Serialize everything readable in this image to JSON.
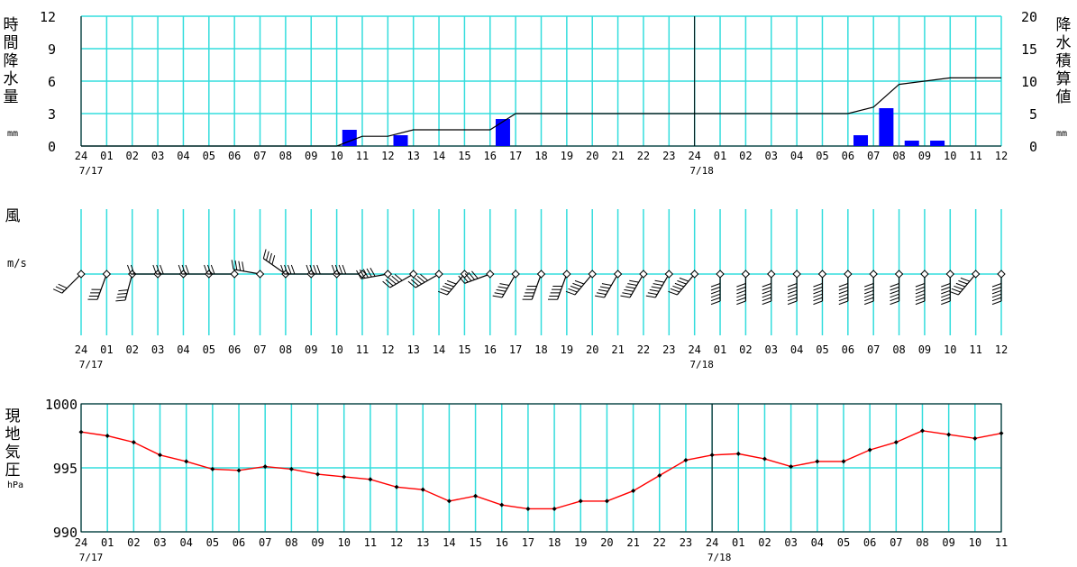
{
  "hour_labels_24": [
    "24",
    "01",
    "02",
    "03",
    "04",
    "05",
    "06",
    "07",
    "08",
    "09",
    "10",
    "11",
    "12",
    "13",
    "14",
    "15",
    "16",
    "17",
    "18",
    "19",
    "20",
    "21",
    "22",
    "23",
    "24",
    "01",
    "02",
    "03",
    "04",
    "05",
    "06",
    "07",
    "08",
    "09",
    "10",
    "11",
    "12"
  ],
  "hour_labels_23": [
    "24",
    "01",
    "02",
    "03",
    "04",
    "05",
    "06",
    "07",
    "08",
    "09",
    "10",
    "11",
    "12",
    "13",
    "14",
    "15",
    "16",
    "17",
    "18",
    "19",
    "20",
    "21",
    "22",
    "23",
    "24",
    "01",
    "02",
    "03",
    "04",
    "05",
    "06",
    "07",
    "08",
    "09",
    "10",
    "11"
  ],
  "dates": [
    "7/17",
    "7/18"
  ],
  "colors": {
    "grid": "#33dddd",
    "bar": "#0000ff",
    "pressure": "#ff0000",
    "frame": "#000000"
  },
  "panels": {
    "precip": {
      "label_left": "時間降水量",
      "unit_left": "mm",
      "label_right": "降水積算値",
      "unit_right": "mm",
      "left_ticks": [
        "12",
        "9",
        "6",
        "3",
        "0"
      ],
      "right_ticks": [
        "20",
        "15",
        "10",
        "5",
        "0"
      ]
    },
    "wind": {
      "label": "風",
      "unit": "m/s"
    },
    "pressure": {
      "label": "現地気圧",
      "unit": "hPa",
      "ticks": [
        "1000",
        "995",
        "990"
      ]
    }
  },
  "chart_data": [
    {
      "type": "bar",
      "title": "時間降水量",
      "ylabel": "時間降水量 (mm)",
      "ylim": [
        0,
        12
      ],
      "x": [
        "10:30",
        "12:30",
        "16:30",
        "06:30",
        "07:30",
        "08:30",
        "09:30"
      ],
      "values": [
        1.5,
        1.0,
        2.5,
        1.0,
        3.5,
        0.5,
        0.5
      ],
      "grid": true
    },
    {
      "type": "line",
      "title": "降水積算値",
      "ylabel": "降水積算値 (mm)",
      "ylim": [
        0,
        20
      ],
      "x": [
        "7/17 24:00",
        "10:00",
        "11:00",
        "12:00",
        "13:00",
        "16:00",
        "17:00",
        "7/18 06:00",
        "07:00",
        "08:00",
        "09:00",
        "10:00",
        "12:00"
      ],
      "values": [
        0,
        0,
        1.5,
        1.5,
        2.5,
        2.5,
        5.0,
        5.0,
        6.0,
        9.5,
        10.0,
        10.5,
        10.5
      ]
    },
    {
      "type": "wind-barbs",
      "title": "風",
      "ylabel": "m/s",
      "x": [
        "24",
        "01",
        "02",
        "03",
        "04",
        "05",
        "06",
        "07",
        "08",
        "09",
        "10",
        "11",
        "12",
        "13",
        "14",
        "15",
        "16",
        "17",
        "18",
        "19",
        "20",
        "21",
        "22",
        "23",
        "24",
        "01",
        "02",
        "03",
        "04",
        "05",
        "06",
        "07",
        "08",
        "09",
        "10",
        "11",
        "12"
      ],
      "direction_deg": [
        315,
        340,
        345,
        270,
        270,
        270,
        270,
        260,
        235,
        270,
        270,
        270,
        280,
        300,
        300,
        320,
        290,
        330,
        340,
        340,
        320,
        330,
        330,
        330,
        320,
        0,
        0,
        0,
        0,
        0,
        0,
        0,
        0,
        0,
        0,
        320,
        0
      ],
      "speed_ms": [
        6,
        8,
        9,
        5,
        6,
        7,
        7,
        8,
        9,
        8,
        9,
        9,
        10,
        10,
        10,
        11,
        11,
        11,
        11,
        11,
        11,
        11,
        12,
        12,
        13,
        12,
        12,
        12,
        12,
        12,
        12,
        12,
        12,
        12,
        12,
        12,
        12
      ]
    },
    {
      "type": "line",
      "title": "現地気圧",
      "ylabel": "現地気圧 (hPa)",
      "ylim": [
        990,
        1000
      ],
      "x": [
        "24",
        "01",
        "02",
        "03",
        "04",
        "05",
        "06",
        "07",
        "08",
        "09",
        "10",
        "11",
        "12",
        "13",
        "14",
        "15",
        "16",
        "17",
        "18",
        "19",
        "20",
        "21",
        "22",
        "23",
        "24",
        "01",
        "02",
        "03",
        "04",
        "05",
        "06",
        "07",
        "08",
        "09",
        "10",
        "11"
      ],
      "values": [
        997.8,
        997.5,
        997.0,
        996.0,
        995.5,
        994.9,
        994.8,
        995.1,
        994.9,
        994.5,
        994.3,
        994.1,
        993.5,
        993.3,
        992.4,
        992.8,
        992.1,
        991.8,
        991.8,
        992.4,
        992.4,
        993.2,
        994.4,
        995.6,
        996.0,
        996.1,
        995.7,
        995.1,
        995.5,
        995.5,
        996.4,
        997.0,
        997.9,
        997.6,
        997.3,
        997.7
      ],
      "grid": true
    }
  ]
}
